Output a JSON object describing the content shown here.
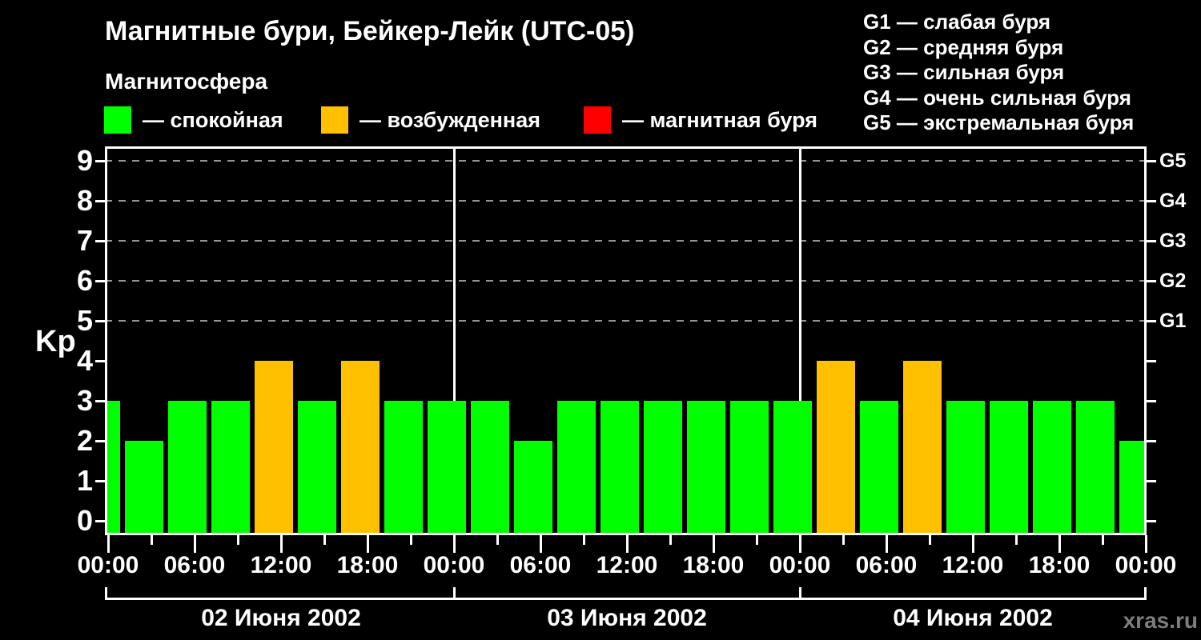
{
  "watermark": "xras.ru",
  "chart_data": {
    "type": "bar",
    "title": "Магнитные бури, Бейкер-Лейк (UTC-05)",
    "subtitle": "Магнитосфера",
    "ylabel": "Kp",
    "xlabel": "",
    "ylim": [
      0,
      9
    ],
    "yticks": [
      0,
      1,
      2,
      3,
      4,
      5,
      6,
      7,
      8,
      9
    ],
    "gridlines_at": [
      5,
      6,
      7,
      8,
      9
    ],
    "grid": "dashed-horizontal",
    "legend_position": "top",
    "right_axis": [
      {
        "value": 5,
        "label": "G1"
      },
      {
        "value": 6,
        "label": "G2"
      },
      {
        "value": 7,
        "label": "G3"
      },
      {
        "value": 8,
        "label": "G4"
      },
      {
        "value": 9,
        "label": "G5"
      }
    ],
    "g_scale_lines": [
      "G1 — слабая буря",
      "G2 — средняя буря",
      "G3 — сильная буря",
      "G4 — очень сильная буря",
      "G5 — экстремальная буря"
    ],
    "legend_states": [
      {
        "state": "quiet",
        "color": "#00ff00",
        "label": "— спокойная"
      },
      {
        "state": "excited",
        "color": "#ffc000",
        "label": "— возбужденная"
      },
      {
        "state": "storm",
        "color": "#ff0000",
        "label": "— магнитная буря"
      }
    ],
    "colors": {
      "quiet": "#00ff00",
      "excited": "#ffc000",
      "storm": "#ff0000"
    },
    "x_major_ticks": [
      {
        "hour": 0,
        "label": "00:00"
      },
      {
        "hour": 6,
        "label": "06:00"
      },
      {
        "hour": 12,
        "label": "12:00"
      },
      {
        "hour": 18,
        "label": "18:00"
      },
      {
        "hour": 24,
        "label": "00:00"
      },
      {
        "hour": 30,
        "label": "06:00"
      },
      {
        "hour": 36,
        "label": "12:00"
      },
      {
        "hour": 42,
        "label": "18:00"
      },
      {
        "hour": 48,
        "label": "00:00"
      },
      {
        "hour": 54,
        "label": "06:00"
      },
      {
        "hour": 60,
        "label": "12:00"
      },
      {
        "hour": 66,
        "label": "18:00"
      },
      {
        "hour": 72,
        "label": "00:00"
      }
    ],
    "x_minor_tick_hours": [
      3,
      9,
      15,
      21,
      27,
      33,
      39,
      45,
      51,
      57,
      63,
      69
    ],
    "days": [
      {
        "label": "02 Июня 2002",
        "start_hour": 0,
        "end_hour": 24
      },
      {
        "label": "03 Июня 2002",
        "start_hour": 24,
        "end_hour": 48
      },
      {
        "label": "04 Июня 2002",
        "start_hour": 48,
        "end_hour": 72
      }
    ],
    "bars": [
      {
        "hour": 0,
        "kp": 3,
        "state": "quiet"
      },
      {
        "hour": 3,
        "kp": 2,
        "state": "quiet"
      },
      {
        "hour": 6,
        "kp": 3,
        "state": "quiet"
      },
      {
        "hour": 9,
        "kp": 3,
        "state": "quiet"
      },
      {
        "hour": 12,
        "kp": 4,
        "state": "excited"
      },
      {
        "hour": 15,
        "kp": 3,
        "state": "quiet"
      },
      {
        "hour": 18,
        "kp": 4,
        "state": "excited"
      },
      {
        "hour": 21,
        "kp": 3,
        "state": "quiet"
      },
      {
        "hour": 24,
        "kp": 3,
        "state": "quiet"
      },
      {
        "hour": 27,
        "kp": 3,
        "state": "quiet"
      },
      {
        "hour": 30,
        "kp": 2,
        "state": "quiet"
      },
      {
        "hour": 33,
        "kp": 3,
        "state": "quiet"
      },
      {
        "hour": 36,
        "kp": 3,
        "state": "quiet"
      },
      {
        "hour": 39,
        "kp": 3,
        "state": "quiet"
      },
      {
        "hour": 42,
        "kp": 3,
        "state": "quiet"
      },
      {
        "hour": 45,
        "kp": 3,
        "state": "quiet"
      },
      {
        "hour": 48,
        "kp": 3,
        "state": "quiet"
      },
      {
        "hour": 51,
        "kp": 4,
        "state": "excited"
      },
      {
        "hour": 54,
        "kp": 3,
        "state": "quiet"
      },
      {
        "hour": 57,
        "kp": 4,
        "state": "excited"
      },
      {
        "hour": 60,
        "kp": 3,
        "state": "quiet"
      },
      {
        "hour": 63,
        "kp": 3,
        "state": "quiet"
      },
      {
        "hour": 66,
        "kp": 3,
        "state": "quiet"
      },
      {
        "hour": 69,
        "kp": 3,
        "state": "quiet"
      },
      {
        "hour": 72,
        "kp": 2,
        "state": "quiet"
      }
    ]
  }
}
